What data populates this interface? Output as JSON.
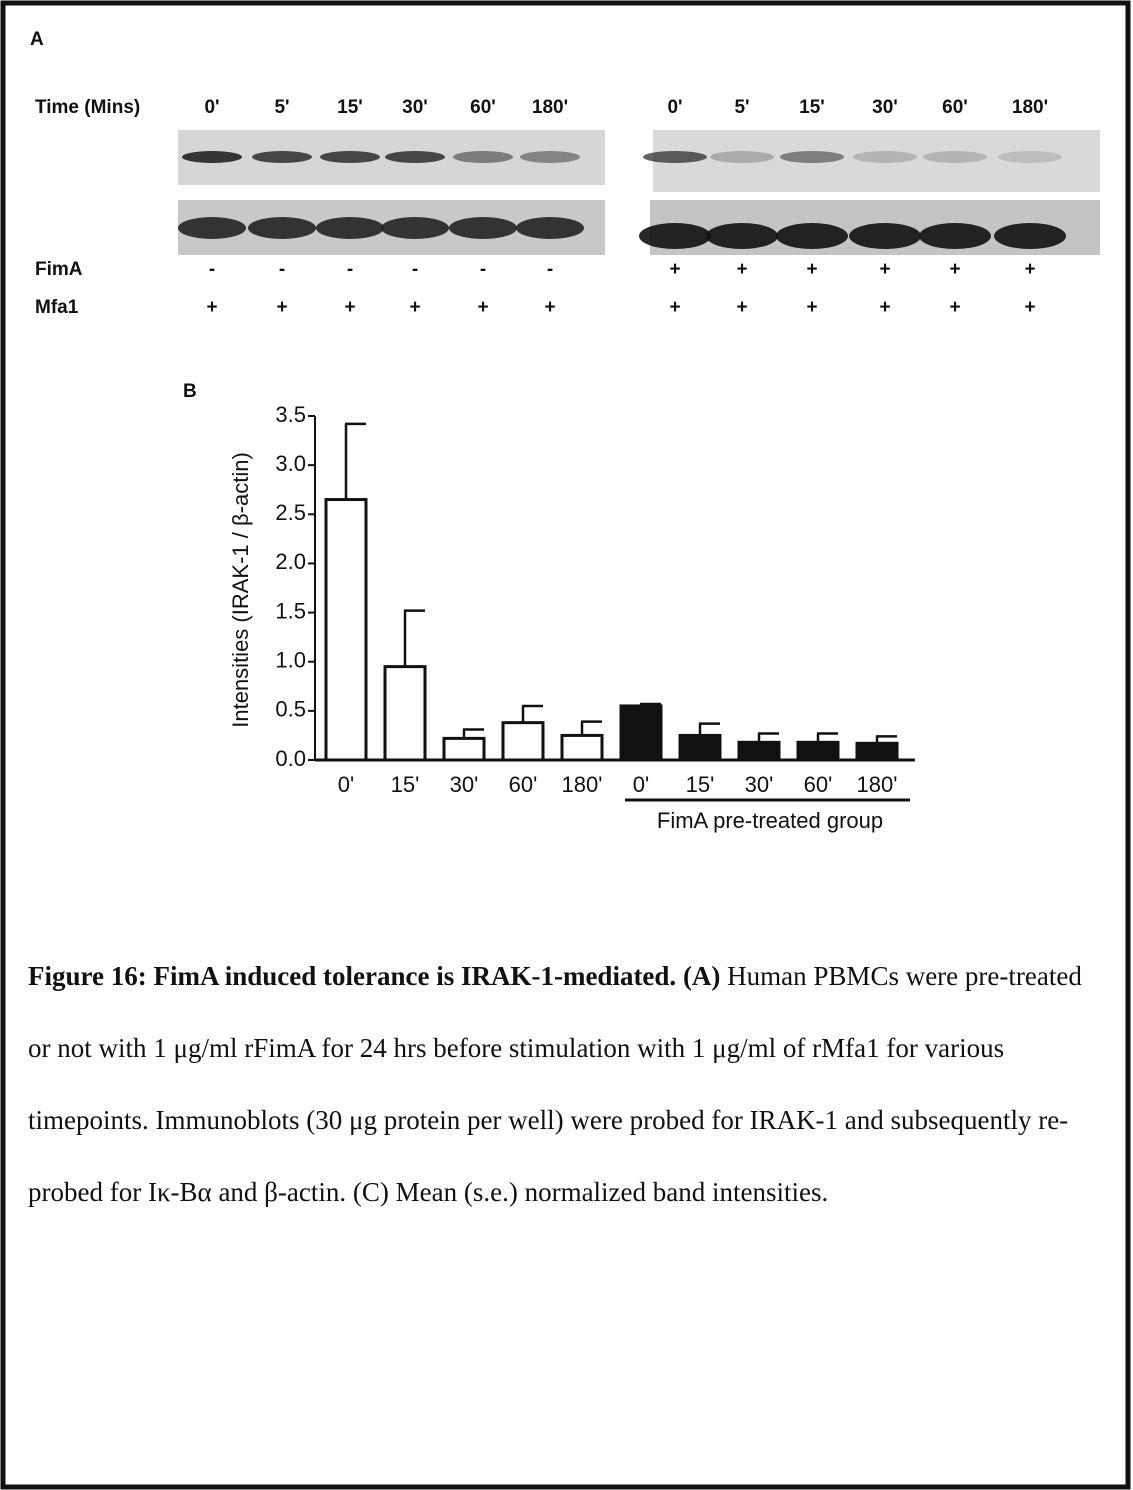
{
  "panel_a": {
    "label": "A",
    "time_label": "Time (Mins)",
    "left_times": [
      "0'",
      "5'",
      "15'",
      "30'",
      "60'",
      "180'"
    ],
    "right_times": [
      "0'",
      "5'",
      "15'",
      "30'",
      "60'",
      "180'"
    ],
    "fima_label": "FimA",
    "mfa1_label": "Mfa1",
    "left_fima": [
      "-",
      "-",
      "-",
      "-",
      "-",
      "-"
    ],
    "left_mfa1": [
      "+",
      "+",
      "+",
      "+",
      "+",
      "+"
    ],
    "right_fima": [
      "+",
      "+",
      "+",
      "+",
      "+",
      "+"
    ],
    "right_mfa1": [
      "+",
      "+",
      "+",
      "+",
      "+",
      "+"
    ]
  },
  "chart_data": {
    "type": "bar",
    "panel_label": "B",
    "ylabel": "Intensities (IRAK-1 /  β-actin)",
    "categories": [
      "0'",
      "15'",
      "30'",
      "60'",
      "180'",
      "0'",
      "15'",
      "30'",
      "60'",
      "180'"
    ],
    "values": [
      2.65,
      0.95,
      0.22,
      0.38,
      0.25,
      0.55,
      0.25,
      0.18,
      0.18,
      0.17
    ],
    "errors": [
      0.77,
      0.57,
      0.09,
      0.17,
      0.14,
      0.02,
      0.12,
      0.09,
      0.09,
      0.07
    ],
    "bar_colors": [
      "#ffffff",
      "#ffffff",
      "#ffffff",
      "#ffffff",
      "#ffffff",
      "#111111",
      "#111111",
      "#111111",
      "#111111",
      "#111111"
    ],
    "group_label": "FimA pre-treated group",
    "ylim": [
      0,
      3.5
    ],
    "yticks": [
      {
        "value": 0,
        "label": "0.0"
      },
      0.5,
      {
        "value": 1,
        "label": "1.0"
      },
      1.5,
      {
        "value": 2,
        "label": "2.0"
      },
      2.5,
      {
        "value": 3,
        "label": "3.0"
      },
      3.5
    ]
  },
  "caption": {
    "title": "Figure 16: FimA induced tolerance is IRAK-1-mediated.",
    "panel_ref": "(A)",
    "text": "Human PBMCs were pre-treated or not with 1 μg/ml rFimA for 24 hrs before stimulation with 1 μg/ml of rMfa1 for various timepoints. Immunoblots (30 μg protein per well) were probed for IRAK-1 and subsequently re-probed for Iκ-Bα and β-actin. (C) Mean (s.e.) normalized band intensities."
  }
}
